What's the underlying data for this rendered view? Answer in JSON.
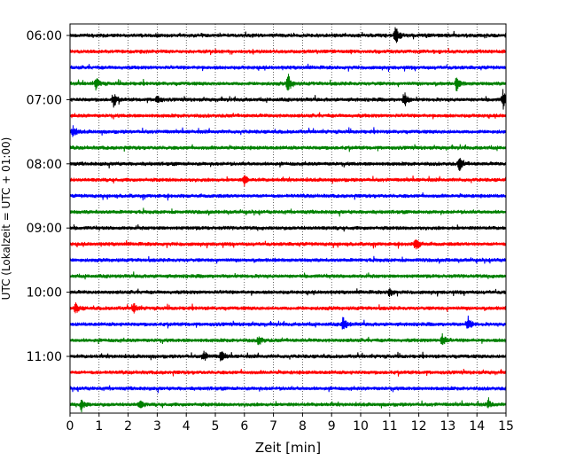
{
  "chart_data": {
    "type": "line",
    "xlabel": "Zeit  [min]",
    "ylabel": "UTC (Lokalzeit = UTC + 01:00)",
    "xlim": [
      0,
      15
    ],
    "x_ticks": [
      0,
      1,
      2,
      3,
      4,
      5,
      6,
      7,
      8,
      9,
      10,
      11,
      12,
      13,
      14,
      15
    ],
    "x_tick_labels": [
      "0",
      "1",
      "2",
      "3",
      "4",
      "5",
      "6",
      "7",
      "8",
      "9",
      "10",
      "11",
      "12",
      "13",
      "14",
      "15"
    ],
    "grid": "vertical dotted lines at each minute",
    "trace_interval_min": 15,
    "y_tick_labels": [
      "06:00",
      "07:00",
      "08:00",
      "09:00",
      "10:00",
      "11:00"
    ],
    "series": [
      {
        "start": "06:00",
        "color": "#000000",
        "events": [
          [
            11.2,
            1.0
          ]
        ]
      },
      {
        "start": "06:15",
        "color": "#ff0000",
        "events": []
      },
      {
        "start": "06:30",
        "color": "#0000ff",
        "events": []
      },
      {
        "start": "06:45",
        "color": "#008000",
        "events": [
          [
            0.9,
            0.6
          ],
          [
            7.5,
            1.0
          ],
          [
            13.3,
            0.7
          ]
        ]
      },
      {
        "start": "07:00",
        "color": "#000000",
        "events": [
          [
            1.5,
            0.7
          ],
          [
            3.0,
            0.4
          ],
          [
            11.5,
            0.8
          ],
          [
            14.9,
            1.0
          ]
        ]
      },
      {
        "start": "07:15",
        "color": "#ff0000",
        "events": []
      },
      {
        "start": "07:30",
        "color": "#0000ff",
        "events": [
          [
            0.1,
            0.6
          ]
        ]
      },
      {
        "start": "07:45",
        "color": "#008000",
        "events": []
      },
      {
        "start": "08:00",
        "color": "#000000",
        "events": [
          [
            13.4,
            0.7
          ]
        ]
      },
      {
        "start": "08:15",
        "color": "#ff0000",
        "events": [
          [
            6.0,
            0.5
          ]
        ]
      },
      {
        "start": "08:30",
        "color": "#0000ff",
        "events": []
      },
      {
        "start": "08:45",
        "color": "#008000",
        "events": []
      },
      {
        "start": "09:00",
        "color": "#000000",
        "events": []
      },
      {
        "start": "09:15",
        "color": "#ff0000",
        "events": [
          [
            11.9,
            0.7
          ]
        ]
      },
      {
        "start": "09:30",
        "color": "#0000ff",
        "events": []
      },
      {
        "start": "09:45",
        "color": "#008000",
        "events": []
      },
      {
        "start": "10:00",
        "color": "#000000",
        "events": [
          [
            11.0,
            0.5
          ]
        ]
      },
      {
        "start": "10:15",
        "color": "#ff0000",
        "events": [
          [
            0.2,
            0.5
          ],
          [
            2.2,
            0.5
          ]
        ]
      },
      {
        "start": "10:30",
        "color": "#0000ff",
        "events": [
          [
            9.4,
            0.8
          ],
          [
            13.7,
            0.7
          ]
        ]
      },
      {
        "start": "10:45",
        "color": "#008000",
        "events": [
          [
            6.5,
            0.5
          ],
          [
            12.8,
            0.7
          ]
        ]
      },
      {
        "start": "11:00",
        "color": "#000000",
        "events": [
          [
            4.6,
            0.6
          ],
          [
            5.2,
            0.6
          ]
        ]
      },
      {
        "start": "11:15",
        "color": "#ff0000",
        "events": []
      },
      {
        "start": "11:30",
        "color": "#0000ff",
        "events": []
      },
      {
        "start": "11:45",
        "color": "#008000",
        "events": [
          [
            0.4,
            0.6
          ],
          [
            2.4,
            0.4
          ],
          [
            14.4,
            0.4
          ]
        ]
      }
    ]
  }
}
